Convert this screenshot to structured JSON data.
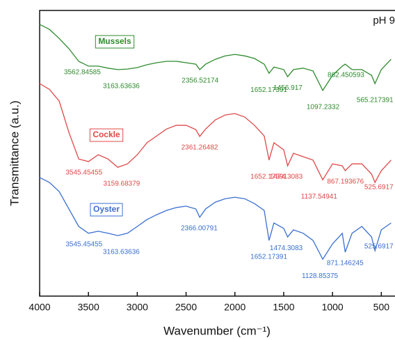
{
  "chart_data": {
    "type": "line",
    "annotation": "pH 9",
    "x_label": "Wavenumber (cm⁻¹)",
    "y_label": "Transmittance (a.u.)",
    "xlim": [
      4000,
      360
    ],
    "ylim": [
      0,
      100
    ],
    "xticks": [
      4000,
      3500,
      3000,
      2500,
      2000,
      1500,
      1000,
      500
    ],
    "x": [
      4000,
      3900,
      3800,
      3700,
      3600,
      3500,
      3400,
      3300,
      3200,
      3100,
      3000,
      2900,
      2800,
      2700,
      2600,
      2500,
      2400,
      2360,
      2300,
      2200,
      2100,
      2000,
      1900,
      1800,
      1700,
      1650,
      1600,
      1500,
      1460,
      1400,
      1300,
      1200,
      1100,
      1000,
      900,
      870,
      800,
      700,
      600,
      565,
      500,
      400
    ],
    "series": [
      {
        "name": "Mussels",
        "color": "#2e8b2e",
        "values": [
          95.1,
          93.4,
          90.2,
          86.6,
          82.2,
          80.5,
          80.5,
          79.8,
          79.3,
          79.5,
          80.0,
          81.0,
          81.7,
          82.2,
          82.2,
          81.7,
          81.2,
          79.3,
          81.2,
          82.9,
          84.1,
          84.6,
          84.1,
          83.2,
          81.2,
          78.0,
          80.2,
          79.3,
          76.8,
          79.3,
          79.8,
          78.8,
          72.0,
          77.3,
          80.5,
          81.2,
          79.3,
          79.3,
          77.3,
          74.4,
          79.3,
          82.9
        ],
        "peaks": [
          3562.84585,
          3163.63636,
          2356.52174,
          1652.17391,
          1456.917,
          1097.2332,
          862.450593,
          565.217391
        ]
      },
      {
        "name": "Cockle",
        "color": "#e04848",
        "values": [
          74.4,
          72.4,
          68.3,
          57.3,
          48.0,
          47.1,
          49.5,
          48.0,
          45.1,
          46.3,
          49.5,
          53.7,
          56.1,
          58.5,
          59.8,
          59.8,
          58.3,
          55.9,
          58.5,
          61.7,
          63.4,
          63.9,
          62.7,
          59.8,
          56.1,
          47.6,
          53.7,
          51.2,
          45.6,
          50.0,
          48.8,
          47.6,
          40.7,
          46.3,
          45.6,
          43.9,
          46.3,
          46.3,
          42.7,
          39.8,
          43.9,
          47.6
        ],
        "peaks": [
          3545.45455,
          3159.68379,
          2361.26482,
          1652.17391,
          1474.3083,
          1137.54941,
          867.193676,
          525.6917
        ]
      },
      {
        "name": "Oyster",
        "color": "#3a6fd0",
        "values": [
          41.5,
          39.8,
          36.6,
          30.5,
          24.4,
          22.0,
          22.7,
          22.0,
          21.2,
          22.0,
          24.4,
          26.8,
          28.5,
          30.0,
          31.0,
          31.5,
          30.5,
          27.6,
          30.5,
          32.9,
          34.1,
          34.6,
          34.1,
          32.4,
          30.0,
          19.5,
          25.6,
          23.7,
          20.7,
          23.2,
          22.0,
          19.5,
          12.9,
          18.3,
          22.0,
          15.4,
          22.0,
          24.4,
          20.7,
          15.9,
          23.2,
          25.6
        ],
        "peaks": [
          3545.45455,
          3163.63636,
          2366.00791,
          1652.17391,
          1474.3083,
          1128.85375,
          871.146245,
          525.6917
        ]
      }
    ]
  }
}
